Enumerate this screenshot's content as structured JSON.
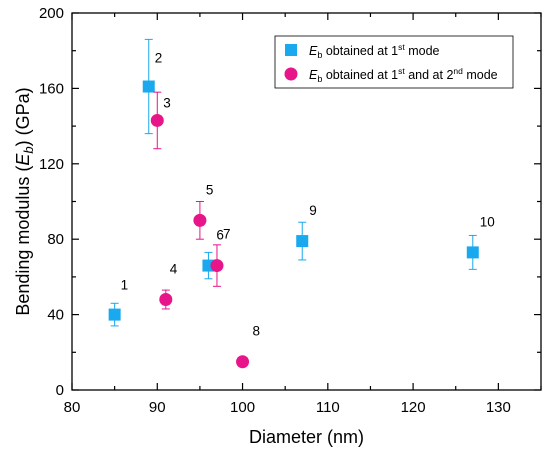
{
  "chart_data": {
    "type": "scatter",
    "xlabel": "Diameter (nm)",
    "ylabel": {
      "pre": "Bending modulus (",
      "var": "E",
      "sub": "b",
      "post": ") (GPa)"
    },
    "xlim": [
      80,
      135
    ],
    "ylim": [
      0,
      200
    ],
    "xticks": [
      80,
      90,
      100,
      110,
      120,
      130
    ],
    "yticks": [
      0,
      40,
      80,
      120,
      160,
      200
    ],
    "grid": false,
    "legend_position": "top-right",
    "series": [
      {
        "name": "Eb obtained at 1st mode",
        "legend": {
          "var": "E",
          "sub": "b",
          "t1": " obtained at 1",
          "sup1": "st",
          "t2": " mode"
        },
        "marker": "square",
        "color": "#1AA9EE",
        "points": [
          {
            "label": "1",
            "x": 85,
            "y": 40,
            "err": 6
          },
          {
            "label": "2",
            "x": 89,
            "y": 161,
            "err": 25
          },
          {
            "label": "6",
            "x": 96,
            "y": 66,
            "err": 7
          },
          {
            "label": "9",
            "x": 107,
            "y": 79,
            "err": 10
          },
          {
            "label": "10",
            "x": 127,
            "y": 73,
            "err": 9
          }
        ]
      },
      {
        "name": "Eb obtained at 1st and at 2nd mode",
        "legend": {
          "var": "E",
          "sub": "b",
          "t1": " obtained at 1",
          "sup1": "st",
          "t2": " and at 2",
          "sup2": "nd",
          "t3": " mode"
        },
        "marker": "circle",
        "color": "#E8148A",
        "points": [
          {
            "label": "3",
            "x": 90,
            "y": 143,
            "err": 15
          },
          {
            "label": "4",
            "x": 91,
            "y": 48,
            "err": 5
          },
          {
            "label": "5",
            "x": 95,
            "y": 90,
            "err": 10
          },
          {
            "label": "7",
            "x": 97,
            "y": 66,
            "err": 11
          },
          {
            "label": "8",
            "x": 100,
            "y": 15,
            "err": 0
          }
        ]
      }
    ]
  }
}
